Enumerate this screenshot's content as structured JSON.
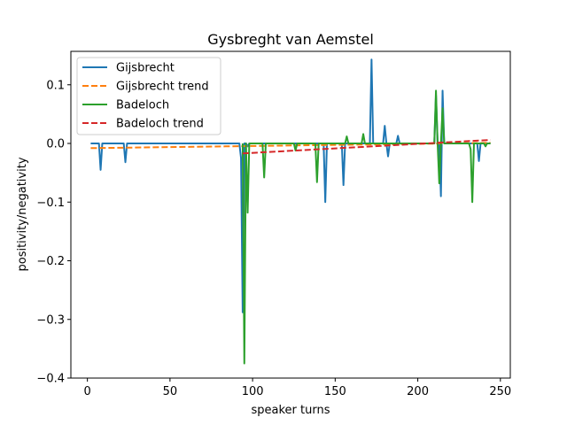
{
  "chart_data": {
    "type": "line",
    "title": "Gysbreght van Aemstel",
    "xlabel": "speaker turns",
    "ylabel": "positivity/negativity",
    "xlim": [
      -10,
      256
    ],
    "ylim": [
      -0.4,
      0.157
    ],
    "xticks": [
      0,
      50,
      100,
      150,
      200,
      250
    ],
    "yticks": [
      -0.4,
      -0.3,
      -0.2,
      -0.1,
      0.0,
      0.1
    ],
    "ytick_labels": [
      "−0.4",
      "−0.3",
      "−0.2",
      "−0.1",
      "0.0",
      "0.1"
    ],
    "grid": false,
    "legend_position": "top-left",
    "series": [
      {
        "name": "Gijsbrecht",
        "color": "#1f77b4",
        "style": "solid",
        "x": [
          2,
          7,
          8,
          9,
          22,
          23,
          24,
          92,
          93,
          94,
          95,
          96,
          97,
          98,
          143,
          144,
          145,
          154,
          155,
          156,
          171,
          172,
          173,
          179,
          180,
          181,
          182,
          183,
          187,
          188,
          189,
          190,
          210,
          211,
          212,
          213,
          214,
          215,
          216,
          217,
          236,
          237,
          238,
          244
        ],
        "y": [
          0.0,
          0.0,
          -0.045,
          0.0,
          0.0,
          -0.032,
          0.0,
          0.0,
          -0.025,
          -0.288,
          0.0,
          0.0,
          -0.005,
          0.0,
          0.0,
          -0.1,
          0.0,
          0.0,
          -0.071,
          0.0,
          0.0,
          0.143,
          0.0,
          0.0,
          0.03,
          0.0,
          -0.022,
          0.0,
          0.0,
          0.013,
          0.0,
          0.0,
          0.0,
          0.082,
          0.0,
          0.0,
          -0.09,
          0.09,
          0.0,
          0.0,
          0.0,
          -0.03,
          0.0,
          0.0
        ]
      },
      {
        "name": "Gijsbrecht trend",
        "color": "#ff7f0e",
        "style": "dashed",
        "x": [
          2,
          244
        ],
        "y": [
          -0.008,
          0.001
        ]
      },
      {
        "name": "Badeloch",
        "color": "#2ca02c",
        "style": "solid",
        "x": [
          94,
          95,
          96,
          97,
          98,
          106,
          107,
          108,
          125,
          126,
          127,
          138,
          139,
          140,
          156,
          157,
          158,
          166,
          167,
          168,
          210,
          211,
          212,
          213,
          214,
          215,
          216,
          217,
          231,
          232,
          233,
          234,
          235,
          240,
          241,
          242,
          244
        ],
        "y": [
          0.0,
          -0.375,
          0.0,
          -0.118,
          0.0,
          0.0,
          -0.058,
          0.0,
          0.0,
          -0.012,
          0.0,
          0.0,
          -0.066,
          0.0,
          0.0,
          0.012,
          0.0,
          0.0,
          0.016,
          0.0,
          0.0,
          0.09,
          0.0,
          -0.068,
          0.0,
          0.06,
          0.0,
          0.0,
          0.0,
          -0.01,
          -0.1,
          0.0,
          0.0,
          0.0,
          -0.005,
          0.0,
          0.0
        ]
      },
      {
        "name": "Badeloch trend",
        "color": "#d62728",
        "style": "dashed",
        "x": [
          94,
          244
        ],
        "y": [
          -0.017,
          0.006
        ]
      }
    ]
  }
}
